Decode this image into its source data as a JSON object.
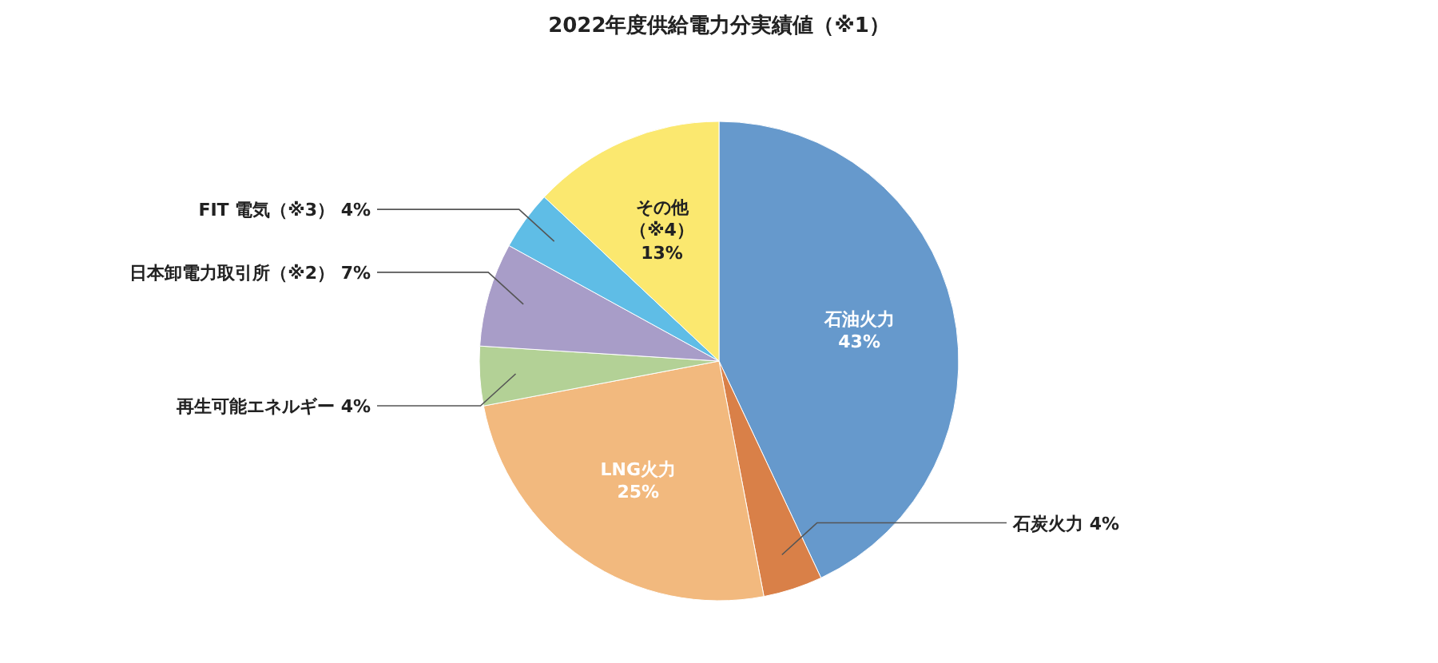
{
  "chart_data": {
    "type": "pie",
    "title": "2022年度供給電力分実績値（※1）",
    "categories": [
      "石油火力",
      "石炭火力",
      "LNG火力",
      "再生可能エネルギー",
      "日本卸電力取引所（※2）",
      "FIT 電気（※3）",
      "その他（※4）"
    ],
    "values": [
      43,
      4,
      25,
      4,
      7,
      4,
      13
    ],
    "value_labels": [
      "43%",
      "4%",
      "25%",
      "4%",
      "7%",
      "4%",
      "13%"
    ],
    "colors": [
      "#6699cc",
      "#d98048",
      "#f2b97e",
      "#b3d196",
      "#a89dc8",
      "#5fbde6",
      "#fbe86f"
    ]
  }
}
